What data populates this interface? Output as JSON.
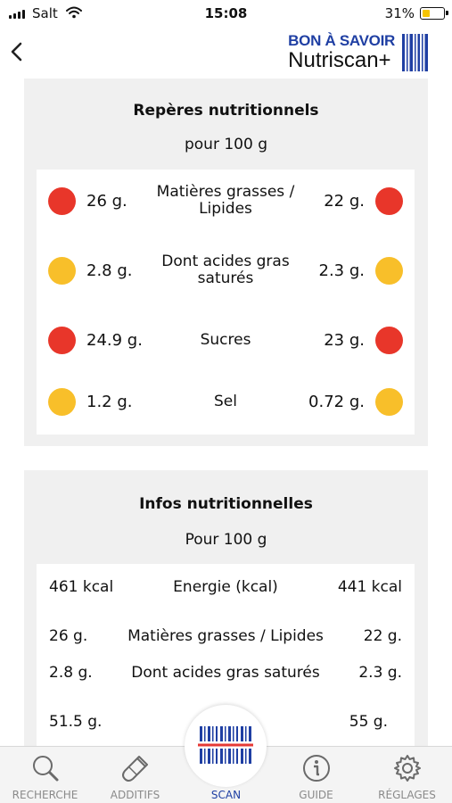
{
  "status_bar": {
    "carrier": "Salt",
    "time": "15:08",
    "battery": "31%",
    "battery_level": 0.31
  },
  "header": {
    "logo_top": "BON À SAVOIR",
    "logo_bottom": "Nutriscan+"
  },
  "reperes": {
    "title": "Repères nutritionnels",
    "subtitle": "pour 100 g",
    "rows": [
      {
        "left": "26 g.",
        "label": "Matières grasses / Lipides",
        "right": "22 g.",
        "left_color": "red",
        "right_color": "red"
      },
      {
        "left": "2.8 g.",
        "label": "Dont acides gras saturés",
        "right": "2.3 g.",
        "left_color": "amber",
        "right_color": "amber"
      },
      {
        "left": "24.9 g.",
        "label": "Sucres",
        "right": "23 g.",
        "left_color": "red",
        "right_color": "red"
      },
      {
        "left": "1.2 g.",
        "label": "Sel",
        "right": "0.72 g.",
        "left_color": "amber",
        "right_color": "amber"
      }
    ]
  },
  "infos": {
    "title": "Infos nutritionnelles",
    "subtitle": "Pour 100 g",
    "rows": [
      {
        "left": "461 kcal",
        "label": "Energie (kcal)",
        "right": "441 kcal"
      },
      {
        "left": "26 g.",
        "label": "Matières grasses / Lipides",
        "right": "22 g."
      },
      {
        "left": "2.8 g.",
        "label": "Dont acides gras saturés",
        "right": "2.3 g."
      },
      {
        "left": "51.5 g.",
        "label": "",
        "right": "55 g."
      }
    ]
  },
  "tabs": [
    {
      "label": "RECHERCHE",
      "icon": "search-icon"
    },
    {
      "label": "ADDITIFS",
      "icon": "test-tube-icon"
    },
    {
      "label": "SCAN",
      "icon": "barcode-icon",
      "active": true
    },
    {
      "label": "GUIDE",
      "icon": "info-icon"
    },
    {
      "label": "RÉGLAGES",
      "icon": "gear-icon"
    }
  ],
  "colors": {
    "red": "#e8362a",
    "amber": "#f8bf2a",
    "brand_blue": "#1f3fa3",
    "scan_red": "#e53935"
  }
}
